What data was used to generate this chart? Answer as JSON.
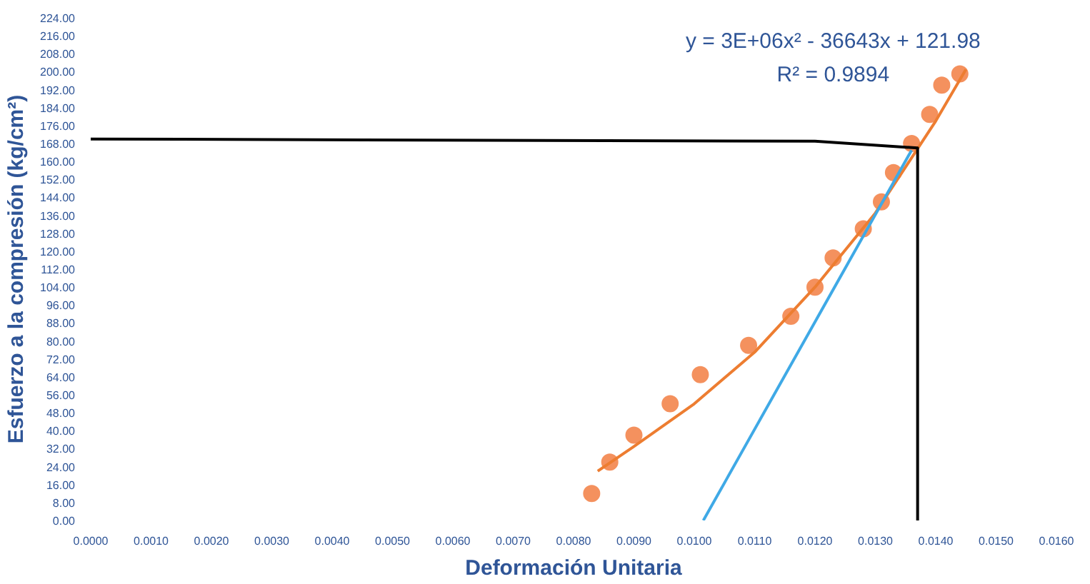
{
  "chart_data": {
    "type": "scatter",
    "xlabel": "Deformación Unitaria",
    "ylabel": "Esfuerzo a la compresión (kg/cm²)",
    "xlim": [
      0,
      0.016
    ],
    "ylim": [
      0,
      224
    ],
    "xticks": [
      {
        "value": 0,
        "label": "0.0000"
      },
      {
        "value": 0.001,
        "label": "0.0010"
      },
      {
        "value": 0.002,
        "label": "0.0020"
      },
      {
        "value": 0.003,
        "label": "0.0030"
      },
      {
        "value": 0.004,
        "label": "0.0040"
      },
      {
        "value": 0.005,
        "label": "0.0050"
      },
      {
        "value": 0.006,
        "label": "0.0060"
      },
      {
        "value": 0.007,
        "label": "0.0070"
      },
      {
        "value": 0.008,
        "label": "0.0080"
      },
      {
        "value": 0.009,
        "label": "0.0090"
      },
      {
        "value": 0.01,
        "label": "0.0100"
      },
      {
        "value": 0.011,
        "label": "0.0110"
      },
      {
        "value": 0.012,
        "label": "0.0120"
      },
      {
        "value": 0.013,
        "label": "0.0130"
      },
      {
        "value": 0.014,
        "label": "0.0140"
      },
      {
        "value": 0.015,
        "label": "0.0150"
      },
      {
        "value": 0.016,
        "label": "0.0160"
      }
    ],
    "yticks": [
      {
        "value": 0,
        "label": "0.00"
      },
      {
        "value": 8,
        "label": "8.00"
      },
      {
        "value": 16,
        "label": "16.00"
      },
      {
        "value": 24,
        "label": "24.00"
      },
      {
        "value": 32,
        "label": "32.00"
      },
      {
        "value": 40,
        "label": "40.00"
      },
      {
        "value": 48,
        "label": "48.00"
      },
      {
        "value": 56,
        "label": "56.00"
      },
      {
        "value": 64,
        "label": "64.00"
      },
      {
        "value": 72,
        "label": "72.00"
      },
      {
        "value": 80,
        "label": "80.00"
      },
      {
        "value": 88,
        "label": "88.00"
      },
      {
        "value": 96,
        "label": "96.00"
      },
      {
        "value": 104,
        "label": "104.00"
      },
      {
        "value": 112,
        "label": "112.00"
      },
      {
        "value": 120,
        "label": "120.00"
      },
      {
        "value": 128,
        "label": "128.00"
      },
      {
        "value": 136,
        "label": "136.00"
      },
      {
        "value": 144,
        "label": "144.00"
      },
      {
        "value": 152,
        "label": "152.00"
      },
      {
        "value": 160,
        "label": "160.00"
      },
      {
        "value": 168,
        "label": "168.00"
      },
      {
        "value": 176,
        "label": "176.00"
      },
      {
        "value": 184,
        "label": "184.00"
      },
      {
        "value": 192,
        "label": "192.00"
      },
      {
        "value": 200,
        "label": "200.00"
      },
      {
        "value": 208,
        "label": "208.00"
      },
      {
        "value": 216,
        "label": "216.00"
      },
      {
        "value": 224,
        "label": "224.00"
      }
    ],
    "grid": false,
    "annotations": [
      "y = 3E+06x² - 36643x + 121.98",
      "R² = 0.9894"
    ],
    "series": [
      {
        "marker": "circle",
        "color": "#f4915e",
        "x": [
          0.0083,
          0.0086,
          0.009,
          0.0096,
          0.0101,
          0.0109,
          0.0116,
          0.012,
          0.0123,
          0.0128,
          0.0131,
          0.0133,
          0.0136,
          0.0139,
          0.0141,
          0.0144
        ],
        "values": [
          12,
          26,
          38,
          52,
          65,
          78,
          91,
          104,
          117,
          130,
          142,
          155,
          168,
          181,
          194,
          199
        ]
      },
      {
        "type": "line",
        "marker": "none",
        "color": "#ed7d31",
        "x": [
          0.0084,
          0.009,
          0.01,
          0.011,
          0.012,
          0.013,
          0.014,
          0.0145
        ],
        "values": [
          22,
          33,
          52,
          75,
          104,
          137,
          178,
          201
        ]
      },
      {
        "type": "line",
        "marker": "none",
        "color": "#3fa9e6",
        "x": [
          0.01015,
          0.0136
        ],
        "values": [
          0,
          165
        ]
      },
      {
        "type": "line",
        "marker": "none",
        "color": "#000000",
        "x": [
          0,
          0.012,
          0.0137,
          0.0137
        ],
        "values": [
          170,
          169,
          166,
          0
        ]
      }
    ]
  }
}
